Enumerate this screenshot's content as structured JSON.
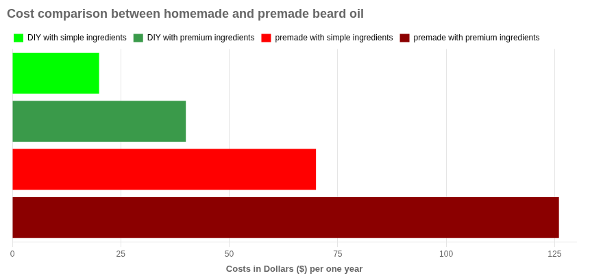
{
  "chart_data": {
    "type": "bar",
    "title": "Cost comparison between homemade and premade beard oil",
    "x_label": "Costs in Dollars ($) per one year",
    "categories": [
      "DIY with simple ingredients",
      "DIY with premium ingredients",
      "premade with simple ingredients",
      "premade with premium ingredients"
    ],
    "values": [
      20,
      40,
      70,
      126
    ],
    "colors": [
      "#00ff00",
      "#3a9a4a",
      "#ff0000",
      "#8b0000"
    ],
    "orientation": "horizontal",
    "xlim": [
      0,
      130
    ],
    "xticks": [
      0,
      25,
      50,
      75,
      100,
      125
    ],
    "grid": true,
    "legend": "upper left",
    "tick_labels": "x"
  }
}
